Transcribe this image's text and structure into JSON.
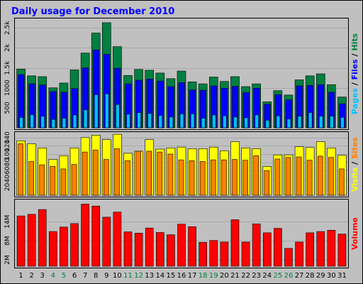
{
  "chart_data": {
    "title": "Daily usage for December 2010",
    "days": [
      "1",
      "2",
      "3",
      "4",
      "5",
      "6",
      "7",
      "8",
      "9",
      "10",
      "11",
      "12",
      "13",
      "14",
      "15",
      "16",
      "17",
      "18",
      "19",
      "20",
      "21",
      "22",
      "23",
      "24",
      "25",
      "26",
      "27",
      "28",
      "29",
      "30",
      "31"
    ],
    "weekend_days": [
      "4",
      "5",
      "11",
      "12",
      "18",
      "19",
      "25",
      "26"
    ],
    "colors": {
      "weekday_label": "#000000",
      "weekend_label": "#008040",
      "hits": "#008040",
      "files": "#0000ff",
      "pages": "#00c0ff",
      "visits": "#ffff00",
      "sites": "#ff8000",
      "volume": "#ff0000",
      "plot_background": "#c0c0c0",
      "title": "#0000ff"
    },
    "panels": [
      {
        "type": "bar",
        "label_parts": [
          {
            "text": "Pages",
            "color": "#00c0ff"
          },
          {
            "text": " / ",
            "color": "#000000"
          },
          {
            "text": "Files",
            "color": "#0000ff"
          },
          {
            "text": " / ",
            "color": "#000000"
          },
          {
            "text": "Hits",
            "color": "#008040"
          }
        ],
        "ylim": [
          0,
          2700
        ],
        "ticks": [
          {
            "value": 500,
            "label": "500"
          },
          {
            "value": 1000,
            "label": "1000"
          },
          {
            "value": 1500,
            "label": "1.5k"
          },
          {
            "value": 2000,
            "label": "2k"
          },
          {
            "value": 2500,
            "label": "2.5k"
          }
        ],
        "series": [
          {
            "name": "Hits",
            "color": "#008040",
            "values": [
              1470,
              1300,
              1280,
              1000,
              1120,
              1450,
              1870,
              2370,
              2630,
              2030,
              1310,
              1460,
              1440,
              1370,
              1230,
              1420,
              1150,
              1100,
              1270,
              1160,
              1280,
              1030,
              1100,
              650,
              930,
              820,
              1200,
              1300,
              1350,
              1080,
              770
            ]
          },
          {
            "name": "Files",
            "color": "#0000ff",
            "values": [
              1330,
              1100,
              1070,
              910,
              890,
              980,
              1500,
              1950,
              1840,
              1490,
              1100,
              1190,
              1220,
              1170,
              1030,
              1130,
              950,
              940,
              1050,
              990,
              1040,
              880,
              990,
              590,
              830,
              700,
              1050,
              1060,
              1080,
              890,
              600
            ]
          },
          {
            "name": "Pages",
            "color": "#00c0ff",
            "values": [
              260,
              330,
              290,
              210,
              240,
              320,
              450,
              830,
              850,
              580,
              340,
              380,
              360,
              310,
              270,
              350,
              350,
              240,
              320,
              300,
              270,
              250,
              320,
              190,
              300,
              220,
              290,
              380,
              290,
              290,
              260
            ]
          }
        ]
      },
      {
        "type": "bar",
        "label_parts": [
          {
            "text": "Visits",
            "color": "#ffff00"
          },
          {
            "text": " / ",
            "color": "#000000"
          },
          {
            "text": "Sites",
            "color": "#ff8000"
          }
        ],
        "ylim": [
          0,
          150
        ],
        "ticks": [
          {
            "value": 20,
            "label": "20"
          },
          {
            "value": 40,
            "label": "40"
          },
          {
            "value": 60,
            "label": "60"
          },
          {
            "value": 80,
            "label": "80"
          },
          {
            "value": 100,
            "label": "100"
          },
          {
            "value": 120,
            "label": "120"
          },
          {
            "value": 140,
            "label": "140"
          }
        ],
        "series": [
          {
            "name": "Visits",
            "color": "#ffff00",
            "values": [
              132,
              125,
              115,
              87,
              96,
              115,
              140,
              146,
              135,
              148,
              102,
              107,
              135,
              112,
              115,
              117,
              113,
              113,
              117,
              108,
              130,
              115,
              113,
              70,
              98,
              98,
              118,
              116,
              130,
              115,
              97
            ]
          },
          {
            "name": "Sites",
            "color": "#ff8000",
            "values": [
              125,
              82,
              74,
              70,
              64,
              75,
              105,
              110,
              87,
              113,
              84,
              107,
              107,
              105,
              100,
              86,
              84,
              82,
              86,
              86,
              87,
              85,
              96,
              60,
              88,
              92,
              93,
              85,
              95,
              92,
              64
            ]
          }
        ]
      },
      {
        "type": "bar",
        "label_parts": [
          {
            "text": "Volume",
            "color": "#ff0000"
          }
        ],
        "ylim": [
          0,
          20.5
        ],
        "ticks": [
          {
            "value": 2,
            "label": "2M"
          },
          {
            "value": 8,
            "label": "8M"
          },
          {
            "value": 14,
            "label": "14M"
          }
        ],
        "series": [
          {
            "name": "Volume",
            "color": "#ff0000",
            "values": [
              15.8,
              16.3,
              17.8,
              10.9,
              12.3,
              13.4,
              19.5,
              18.9,
              15.4,
              17.0,
              10.8,
              10.4,
              12.0,
              10.6,
              9.9,
              13.2,
              12.4,
              7.5,
              8.1,
              7.6,
              14.6,
              7.6,
              13.3,
              10.5,
              11.9,
              5.6,
              7.6,
              10.5,
              10.9,
              11.3,
              10.1
            ]
          }
        ]
      }
    ]
  }
}
